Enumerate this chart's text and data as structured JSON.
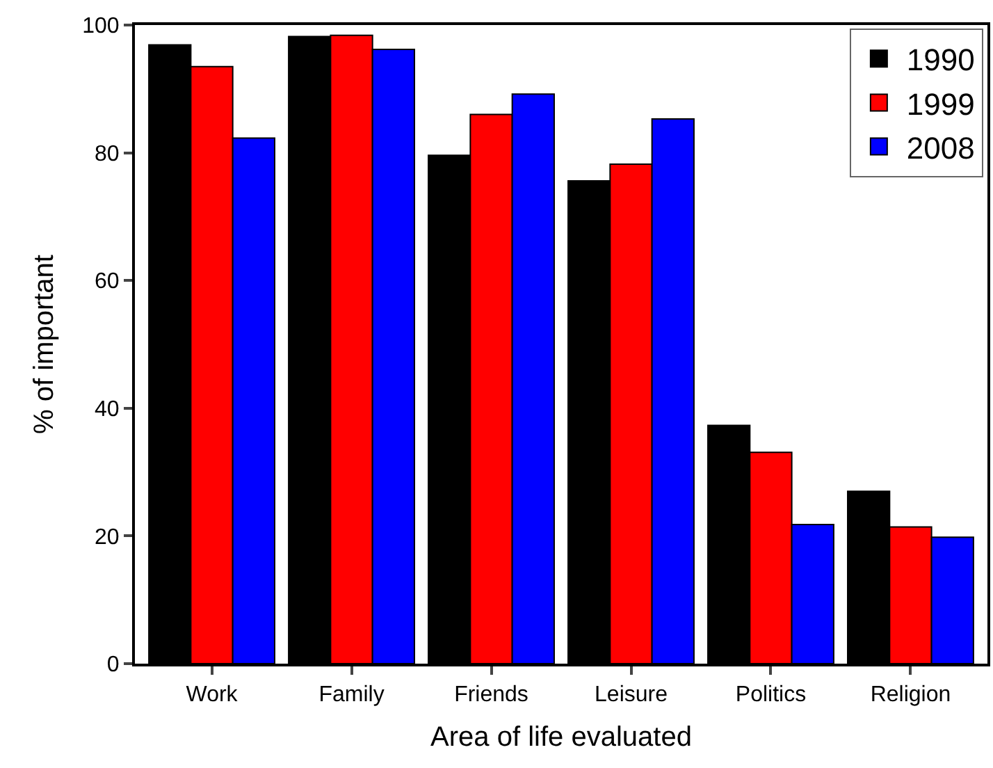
{
  "chart_data": {
    "type": "bar",
    "xlabel": "Area of life evaluated",
    "ylabel": "% of important",
    "categories": [
      "Work",
      "Family",
      "Friends",
      "Leisure",
      "Politics",
      "Religion"
    ],
    "series": [
      {
        "name": "1990",
        "color": "#000000",
        "values": [
          96.9,
          98.2,
          79.6,
          75.6,
          37.3,
          27.0
        ]
      },
      {
        "name": "1999",
        "color": "#ff0000",
        "values": [
          93.5,
          98.4,
          86.0,
          78.2,
          33.1,
          21.4
        ]
      },
      {
        "name": "2008",
        "color": "#0000ff",
        "values": [
          82.3,
          96.2,
          89.2,
          85.3,
          21.8,
          19.8
        ]
      }
    ],
    "ylim": [
      0,
      100
    ],
    "yticks": [
      0,
      20,
      40,
      60,
      80,
      100
    ],
    "legend": "top right"
  }
}
